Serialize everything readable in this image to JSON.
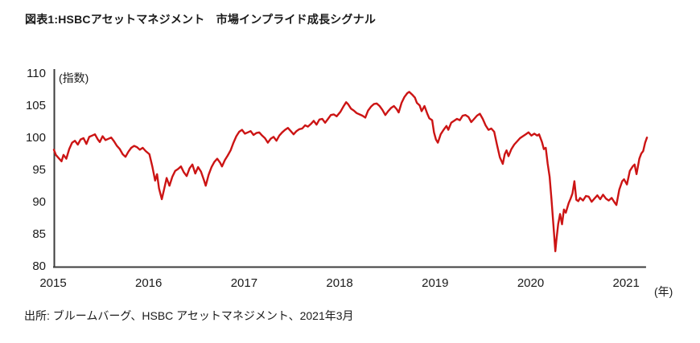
{
  "title": "図表1:HSBCアセットマネジメント　市場インプライド成長シグナル",
  "source": "出所: ブルームバーグ、HSBC アセットマネジメント、2021年3月",
  "chart_data": {
    "type": "line",
    "title": "図表1:HSBCアセットマネジメント　市場インプライド成長シグナル",
    "ylabel": "(指数)",
    "xlabel": "(年)",
    "ylim": [
      80,
      110
    ],
    "xlim": [
      2015,
      2021.2
    ],
    "yticks": [
      80,
      85,
      90,
      95,
      100,
      105,
      110
    ],
    "xticks": [
      2015,
      2016,
      2017,
      2018,
      2019,
      2020,
      2021
    ],
    "grid": false,
    "legend": "none",
    "line_color": "#cc1414",
    "axis_color": "#3d3d3d",
    "series": [
      {
        "name": "市場インプライド成長シグナル",
        "points": [
          [
            2015.0,
            98.2
          ],
          [
            2015.02,
            97.4
          ],
          [
            2015.05,
            96.9
          ],
          [
            2015.08,
            96.4
          ],
          [
            2015.1,
            97.4
          ],
          [
            2015.13,
            96.8
          ],
          [
            2015.16,
            98.3
          ],
          [
            2015.19,
            99.3
          ],
          [
            2015.22,
            99.6
          ],
          [
            2015.25,
            99.0
          ],
          [
            2015.28,
            99.8
          ],
          [
            2015.31,
            100.0
          ],
          [
            2015.34,
            99.1
          ],
          [
            2015.37,
            100.2
          ],
          [
            2015.4,
            100.4
          ],
          [
            2015.43,
            100.6
          ],
          [
            2015.46,
            99.8
          ],
          [
            2015.48,
            99.4
          ],
          [
            2015.51,
            100.3
          ],
          [
            2015.54,
            99.7
          ],
          [
            2015.57,
            99.9
          ],
          [
            2015.6,
            100.1
          ],
          [
            2015.63,
            99.5
          ],
          [
            2015.66,
            98.8
          ],
          [
            2015.69,
            98.3
          ],
          [
            2015.72,
            97.5
          ],
          [
            2015.75,
            97.1
          ],
          [
            2015.78,
            97.9
          ],
          [
            2015.81,
            98.5
          ],
          [
            2015.84,
            98.8
          ],
          [
            2015.87,
            98.6
          ],
          [
            2015.9,
            98.2
          ],
          [
            2015.93,
            98.5
          ],
          [
            2015.96,
            98.0
          ],
          [
            2016.0,
            97.5
          ],
          [
            2016.03,
            95.6
          ],
          [
            2016.06,
            93.4
          ],
          [
            2016.08,
            94.4
          ],
          [
            2016.1,
            92.2
          ],
          [
            2016.13,
            90.5
          ],
          [
            2016.15,
            91.8
          ],
          [
            2016.18,
            93.8
          ],
          [
            2016.21,
            92.6
          ],
          [
            2016.24,
            94.0
          ],
          [
            2016.27,
            94.9
          ],
          [
            2016.3,
            95.2
          ],
          [
            2016.33,
            95.6
          ],
          [
            2016.36,
            94.7
          ],
          [
            2016.39,
            94.1
          ],
          [
            2016.42,
            95.3
          ],
          [
            2016.45,
            95.9
          ],
          [
            2016.48,
            94.5
          ],
          [
            2016.51,
            95.5
          ],
          [
            2016.54,
            94.8
          ],
          [
            2016.57,
            93.5
          ],
          [
            2016.59,
            92.6
          ],
          [
            2016.62,
            94.3
          ],
          [
            2016.65,
            95.5
          ],
          [
            2016.68,
            96.3
          ],
          [
            2016.71,
            96.8
          ],
          [
            2016.74,
            96.2
          ],
          [
            2016.76,
            95.6
          ],
          [
            2016.79,
            96.6
          ],
          [
            2016.82,
            97.3
          ],
          [
            2016.85,
            98.1
          ],
          [
            2016.88,
            99.3
          ],
          [
            2016.91,
            100.3
          ],
          [
            2016.94,
            101.0
          ],
          [
            2016.97,
            101.3
          ],
          [
            2017.0,
            100.7
          ],
          [
            2017.03,
            100.9
          ],
          [
            2017.06,
            101.1
          ],
          [
            2017.09,
            100.5
          ],
          [
            2017.12,
            100.8
          ],
          [
            2017.15,
            100.9
          ],
          [
            2017.18,
            100.4
          ],
          [
            2017.21,
            100.0
          ],
          [
            2017.24,
            99.3
          ],
          [
            2017.27,
            99.9
          ],
          [
            2017.3,
            100.2
          ],
          [
            2017.33,
            99.6
          ],
          [
            2017.36,
            100.4
          ],
          [
            2017.39,
            100.9
          ],
          [
            2017.42,
            101.3
          ],
          [
            2017.45,
            101.6
          ],
          [
            2017.48,
            101.1
          ],
          [
            2017.51,
            100.6
          ],
          [
            2017.54,
            101.1
          ],
          [
            2017.57,
            101.4
          ],
          [
            2017.6,
            101.5
          ],
          [
            2017.63,
            102.0
          ],
          [
            2017.66,
            101.8
          ],
          [
            2017.69,
            102.2
          ],
          [
            2017.72,
            102.7
          ],
          [
            2017.75,
            102.1
          ],
          [
            2017.78,
            102.9
          ],
          [
            2017.81,
            103.0
          ],
          [
            2017.84,
            102.4
          ],
          [
            2017.87,
            103.0
          ],
          [
            2017.9,
            103.6
          ],
          [
            2017.93,
            103.7
          ],
          [
            2017.96,
            103.4
          ],
          [
            2018.0,
            104.1
          ],
          [
            2018.03,
            104.9
          ],
          [
            2018.06,
            105.6
          ],
          [
            2018.08,
            105.3
          ],
          [
            2018.11,
            104.6
          ],
          [
            2018.14,
            104.3
          ],
          [
            2018.17,
            103.9
          ],
          [
            2018.2,
            103.7
          ],
          [
            2018.23,
            103.5
          ],
          [
            2018.26,
            103.2
          ],
          [
            2018.29,
            104.3
          ],
          [
            2018.32,
            104.9
          ],
          [
            2018.35,
            105.3
          ],
          [
            2018.38,
            105.4
          ],
          [
            2018.41,
            105.0
          ],
          [
            2018.44,
            104.4
          ],
          [
            2018.47,
            103.6
          ],
          [
            2018.5,
            104.2
          ],
          [
            2018.53,
            104.7
          ],
          [
            2018.56,
            105.0
          ],
          [
            2018.59,
            104.5
          ],
          [
            2018.61,
            104.0
          ],
          [
            2018.64,
            105.5
          ],
          [
            2018.67,
            106.4
          ],
          [
            2018.7,
            107.0
          ],
          [
            2018.72,
            107.2
          ],
          [
            2018.75,
            106.8
          ],
          [
            2018.78,
            106.3
          ],
          [
            2018.8,
            105.5
          ],
          [
            2018.83,
            105.1
          ],
          [
            2018.85,
            104.2
          ],
          [
            2018.88,
            105.0
          ],
          [
            2018.91,
            103.8
          ],
          [
            2018.93,
            103.1
          ],
          [
            2018.96,
            102.8
          ],
          [
            2018.98,
            100.9
          ],
          [
            2019.0,
            99.8
          ],
          [
            2019.02,
            99.3
          ],
          [
            2019.05,
            100.6
          ],
          [
            2019.08,
            101.3
          ],
          [
            2019.11,
            101.9
          ],
          [
            2019.13,
            101.3
          ],
          [
            2019.16,
            102.4
          ],
          [
            2019.19,
            102.7
          ],
          [
            2019.22,
            103.0
          ],
          [
            2019.25,
            102.8
          ],
          [
            2019.28,
            103.5
          ],
          [
            2019.31,
            103.6
          ],
          [
            2019.34,
            103.3
          ],
          [
            2019.37,
            102.5
          ],
          [
            2019.4,
            103.0
          ],
          [
            2019.43,
            103.5
          ],
          [
            2019.46,
            103.8
          ],
          [
            2019.49,
            103.0
          ],
          [
            2019.52,
            102.0
          ],
          [
            2019.55,
            101.3
          ],
          [
            2019.58,
            101.5
          ],
          [
            2019.61,
            101.0
          ],
          [
            2019.64,
            98.9
          ],
          [
            2019.67,
            97.0
          ],
          [
            2019.7,
            96.0
          ],
          [
            2019.72,
            97.5
          ],
          [
            2019.74,
            98.1
          ],
          [
            2019.76,
            97.2
          ],
          [
            2019.79,
            98.3
          ],
          [
            2019.82,
            99.0
          ],
          [
            2019.85,
            99.5
          ],
          [
            2019.88,
            100.0
          ],
          [
            2019.91,
            100.3
          ],
          [
            2019.94,
            100.6
          ],
          [
            2019.97,
            100.9
          ],
          [
            2020.0,
            100.4
          ],
          [
            2020.03,
            100.7
          ],
          [
            2020.06,
            100.4
          ],
          [
            2020.08,
            100.6
          ],
          [
            2020.11,
            99.4
          ],
          [
            2020.13,
            98.3
          ],
          [
            2020.15,
            98.5
          ],
          [
            2020.17,
            96.0
          ],
          [
            2020.19,
            94.0
          ],
          [
            2020.21,
            90.5
          ],
          [
            2020.23,
            86.5
          ],
          [
            2020.25,
            82.4
          ],
          [
            2020.26,
            84.0
          ],
          [
            2020.28,
            86.6
          ],
          [
            2020.3,
            88.2
          ],
          [
            2020.32,
            86.6
          ],
          [
            2020.34,
            88.9
          ],
          [
            2020.36,
            88.4
          ],
          [
            2020.39,
            89.9
          ],
          [
            2020.41,
            90.6
          ],
          [
            2020.43,
            91.4
          ],
          [
            2020.45,
            93.3
          ],
          [
            2020.47,
            90.4
          ],
          [
            2020.49,
            90.2
          ],
          [
            2020.51,
            90.7
          ],
          [
            2020.54,
            90.3
          ],
          [
            2020.57,
            91.0
          ],
          [
            2020.6,
            90.9
          ],
          [
            2020.63,
            90.1
          ],
          [
            2020.66,
            90.6
          ],
          [
            2020.69,
            91.1
          ],
          [
            2020.72,
            90.5
          ],
          [
            2020.75,
            91.2
          ],
          [
            2020.78,
            90.6
          ],
          [
            2020.81,
            90.3
          ],
          [
            2020.84,
            90.7
          ],
          [
            2020.87,
            90.0
          ],
          [
            2020.89,
            89.6
          ],
          [
            2020.92,
            92.0
          ],
          [
            2020.95,
            93.3
          ],
          [
            2020.97,
            93.6
          ],
          [
            2021.0,
            92.8
          ],
          [
            2021.03,
            94.9
          ],
          [
            2021.06,
            95.6
          ],
          [
            2021.08,
            95.9
          ],
          [
            2021.1,
            94.4
          ],
          [
            2021.13,
            96.8
          ],
          [
            2021.15,
            97.6
          ],
          [
            2021.17,
            98.0
          ],
          [
            2021.19,
            99.3
          ],
          [
            2021.21,
            100.1
          ]
        ]
      }
    ]
  }
}
